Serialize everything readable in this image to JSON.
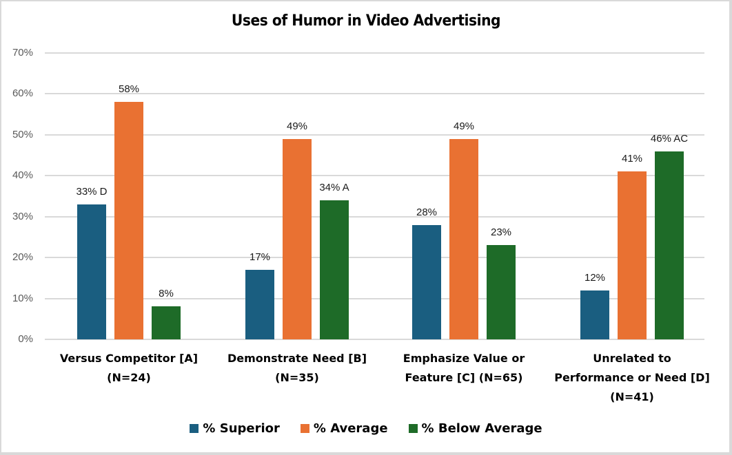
{
  "chart_data": {
    "type": "bar",
    "title": "Uses of Humor in Video Advertising",
    "xlabel": "",
    "ylabel": "",
    "ylim": [
      0,
      70
    ],
    "yticks": [
      "0%",
      "10%",
      "20%",
      "30%",
      "40%",
      "50%",
      "60%",
      "70%"
    ],
    "grid": true,
    "legend_position": "bottom",
    "categories": [
      "Versus Competitor [A] (N=24)",
      "Demonstrate Need [B] (N=35)",
      "Emphasize Value or Feature [C] (N=65)",
      "Unrelated to Performance or Need [D] (N=41)"
    ],
    "series": [
      {
        "name": "% Superior",
        "color": "#1a5e80",
        "values": [
          33,
          17,
          28,
          12
        ],
        "labels": [
          "33% D",
          "17%",
          "28%",
          "12%"
        ]
      },
      {
        "name": "% Average",
        "color": "#e97132",
        "values": [
          58,
          49,
          49,
          41
        ],
        "labels": [
          "58%",
          "49%",
          "49%",
          "41%"
        ]
      },
      {
        "name": "% Below Average",
        "color": "#1e6b28",
        "values": [
          8,
          34,
          23,
          46
        ],
        "labels": [
          "8%",
          "34% A",
          "23%",
          "46% AC"
        ]
      }
    ],
    "category_lines": [
      [
        "Versus Competitor [A]",
        "(N=24)"
      ],
      [
        "Demonstrate Need  [B]",
        "(N=35)"
      ],
      [
        "Emphasize Value or",
        "Feature [C] (N=65)"
      ],
      [
        "Unrelated to",
        "Performance or Need [D]",
        "(N=41)"
      ]
    ]
  }
}
